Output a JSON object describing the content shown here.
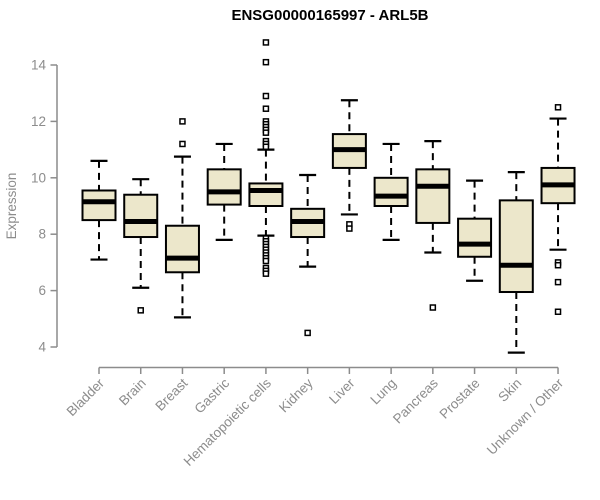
{
  "chart_data": {
    "type": "boxplot",
    "title": "ENSG00000165997 - ARL5B",
    "ylabel": "Expression",
    "xlabel": "",
    "ylim": [
      3.6,
      15.0
    ],
    "yticks": [
      4,
      6,
      8,
      10,
      12,
      14
    ],
    "grid": false,
    "legend": false,
    "colors": {
      "box_fill": "#ECE7CB",
      "box_stroke": "#000000",
      "median": "#000000",
      "whisker": "#000000",
      "axis": "#8C8C8C",
      "title": "#000000",
      "background": "#FFFFFF"
    },
    "categories": [
      "Bladder",
      "Brain",
      "Breast",
      "Gastric",
      "Hematopoietic cells",
      "Kidney",
      "Liver",
      "Lung",
      "Pancreas",
      "Prostate",
      "Skin",
      "Unknown / Other"
    ],
    "series": [
      {
        "category": "Bladder",
        "whisker_low": 7.1,
        "q1": 8.5,
        "median": 9.15,
        "q3": 9.55,
        "whisker_high": 10.6,
        "outliers": []
      },
      {
        "category": "Brain",
        "whisker_low": 6.1,
        "q1": 7.9,
        "median": 8.45,
        "q3": 9.4,
        "whisker_high": 9.95,
        "outliers": [
          5.3
        ]
      },
      {
        "category": "Breast",
        "whisker_low": 5.05,
        "q1": 6.65,
        "median": 7.15,
        "q3": 8.3,
        "whisker_high": 10.75,
        "outliers": [
          12.0,
          11.2
        ]
      },
      {
        "category": "Gastric",
        "whisker_low": 7.8,
        "q1": 9.05,
        "median": 9.5,
        "q3": 10.3,
        "whisker_high": 11.2,
        "outliers": []
      },
      {
        "category": "Hematopoietic cells",
        "whisker_low": 7.95,
        "q1": 9.0,
        "median": 9.55,
        "q3": 9.8,
        "whisker_high": 11.0,
        "outliers": [
          14.8,
          14.1,
          12.9,
          12.45,
          12.0,
          11.9,
          11.8,
          11.7,
          11.6,
          11.3,
          11.2,
          11.1,
          7.85,
          7.75,
          7.65,
          7.55,
          7.45,
          7.35,
          7.25,
          7.15,
          7.05,
          6.8,
          6.7,
          6.6
        ]
      },
      {
        "category": "Kidney",
        "whisker_low": 6.85,
        "q1": 7.9,
        "median": 8.45,
        "q3": 8.9,
        "whisker_high": 10.1,
        "outliers": [
          4.5
        ]
      },
      {
        "category": "Liver",
        "whisker_low": 8.7,
        "q1": 10.35,
        "median": 11.0,
        "q3": 11.55,
        "whisker_high": 12.75,
        "outliers": [
          8.35,
          8.2
        ]
      },
      {
        "category": "Lung",
        "whisker_low": 7.8,
        "q1": 9.0,
        "median": 9.35,
        "q3": 10.0,
        "whisker_high": 11.2,
        "outliers": []
      },
      {
        "category": "Pancreas",
        "whisker_low": 7.35,
        "q1": 8.4,
        "median": 9.7,
        "q3": 10.3,
        "whisker_high": 11.3,
        "outliers": [
          5.4
        ]
      },
      {
        "category": "Prostate",
        "whisker_low": 6.35,
        "q1": 7.2,
        "median": 7.65,
        "q3": 8.55,
        "whisker_high": 9.9,
        "outliers": []
      },
      {
        "category": "Skin",
        "whisker_low": 3.8,
        "q1": 5.95,
        "median": 6.9,
        "q3": 9.2,
        "whisker_high": 10.2,
        "outliers": []
      },
      {
        "category": "Unknown / Other",
        "whisker_low": 7.45,
        "q1": 9.1,
        "median": 9.75,
        "q3": 10.35,
        "whisker_high": 12.1,
        "outliers": [
          12.5,
          7.0,
          6.9,
          6.3,
          5.25
        ]
      }
    ]
  }
}
